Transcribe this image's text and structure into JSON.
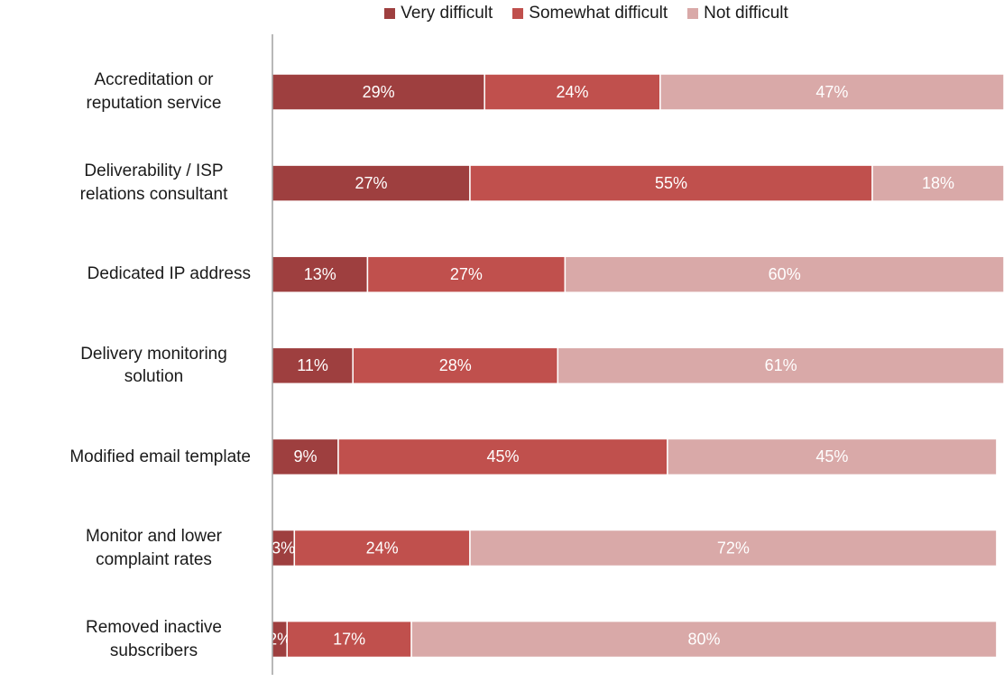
{
  "chart_data": {
    "type": "stacked-barh",
    "categories": [
      "Accreditation or reputation service",
      "Deliverability / ISP relations consultant",
      "Dedicated IP address",
      "Delivery monitoring solution",
      "Modified email template",
      "Monitor and lower complaint rates",
      "Removed inactive subscribers"
    ],
    "xlim": [
      0,
      100
    ],
    "series": [
      {
        "name": "Very difficult",
        "color": "#9e3f3f",
        "values": [
          29,
          27,
          13,
          11,
          9,
          3,
          2
        ],
        "value_labels": [
          "29%",
          "27%",
          "13%",
          "11%",
          "9%",
          "3%",
          "2%"
        ]
      },
      {
        "name": "Somewhat difficult",
        "color": "#c0504d",
        "values": [
          24,
          55,
          27,
          28,
          45,
          24,
          17
        ],
        "value_labels": [
          "24%",
          "55%",
          "27%",
          "28%",
          "45%",
          "24%",
          "17%"
        ]
      },
      {
        "name": "Not difficult",
        "color": "#d9a9a8",
        "values": [
          47,
          18,
          60,
          61,
          45,
          72,
          80
        ],
        "value_labels": [
          "47%",
          "18%",
          "60%",
          "61%",
          "45%",
          "72%",
          "80%"
        ]
      }
    ]
  }
}
